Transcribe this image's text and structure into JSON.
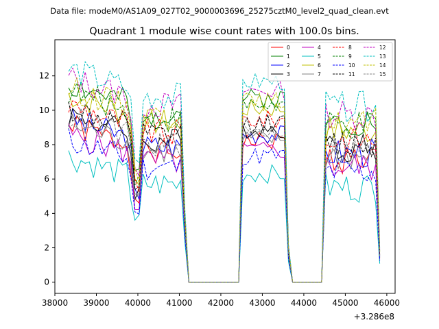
{
  "chart_data": {
    "type": "line",
    "suptitle": "Data file: modeM0/AS1A09_027T02_9000003696_25275cztM0_level2_quad_clean.evt",
    "title": "Quadrant 1 module wise count rates with 100.0s bins.",
    "xlabel": "",
    "ylabel": "",
    "x_offset_label": "+3.286e8",
    "xlim": [
      38000,
      46200
    ],
    "ylim": [
      -0.65,
      14.1
    ],
    "x_ticks": [
      38000,
      39000,
      40000,
      41000,
      42000,
      43000,
      44000,
      45000,
      46000
    ],
    "y_ticks": [
      0,
      2,
      4,
      6,
      8,
      10,
      12
    ],
    "x_tick_labels": [
      "38000",
      "39000",
      "40000",
      "41000",
      "42000",
      "43000",
      "44000",
      "45000",
      "46000"
    ],
    "y_tick_labels": [
      "0",
      "2",
      "4",
      "6",
      "8",
      "10",
      "12"
    ],
    "legend_position": "top-right",
    "x_segments": [
      {
        "start": 38330,
        "count": 29,
        "step": 100
      },
      {
        "start": 41230,
        "count": 12,
        "step": 100
      },
      {
        "start": 42430,
        "count": 12,
        "step": 100
      },
      {
        "start": 43630,
        "count": 8,
        "step": 100
      },
      {
        "start": 44430,
        "count": 15,
        "step": 100
      }
    ],
    "series": [
      {
        "name": "0",
        "color": "#ff0000",
        "dash": "solid",
        "base": 7.8,
        "seed": 1
      },
      {
        "name": "1",
        "color": "#008000",
        "dash": "solid",
        "base": 10.2,
        "seed": 2
      },
      {
        "name": "2",
        "color": "#0000ff",
        "dash": "solid",
        "base": 8.2,
        "seed": 3
      },
      {
        "name": "3",
        "color": "#000000",
        "dash": "solid",
        "base": 8.5,
        "seed": 4
      },
      {
        "name": "4",
        "color": "#bf00bf",
        "dash": "solid",
        "base": 7.3,
        "seed": 5
      },
      {
        "name": "5",
        "color": "#00bfbf",
        "dash": "solid",
        "base": 6.0,
        "seed": 6
      },
      {
        "name": "6",
        "color": "#bfbf00",
        "dash": "solid",
        "base": 9.6,
        "seed": 7
      },
      {
        "name": "7",
        "color": "#808080",
        "dash": "solid",
        "base": 7.9,
        "seed": 8
      },
      {
        "name": "8",
        "color": "#ff0000",
        "dash": "dashed",
        "base": 9.0,
        "seed": 9
      },
      {
        "name": "9",
        "color": "#008000",
        "dash": "dashed",
        "base": 9.8,
        "seed": 10
      },
      {
        "name": "10",
        "color": "#0000ff",
        "dash": "dashed",
        "base": 7.0,
        "seed": 11
      },
      {
        "name": "11",
        "color": "#000000",
        "dash": "dashed",
        "base": 8.8,
        "seed": 12
      },
      {
        "name": "12",
        "color": "#bf00bf",
        "dash": "dashed",
        "base": 10.6,
        "seed": 13
      },
      {
        "name": "13",
        "color": "#00bfbf",
        "dash": "dashed",
        "base": 11.1,
        "seed": 14
      },
      {
        "name": "14",
        "color": "#bfbf00",
        "dash": "dashed",
        "base": 10.0,
        "seed": 15
      },
      {
        "name": "15",
        "color": "#808080",
        "dash": "dashed",
        "base": 8.3,
        "seed": 16
      }
    ]
  }
}
